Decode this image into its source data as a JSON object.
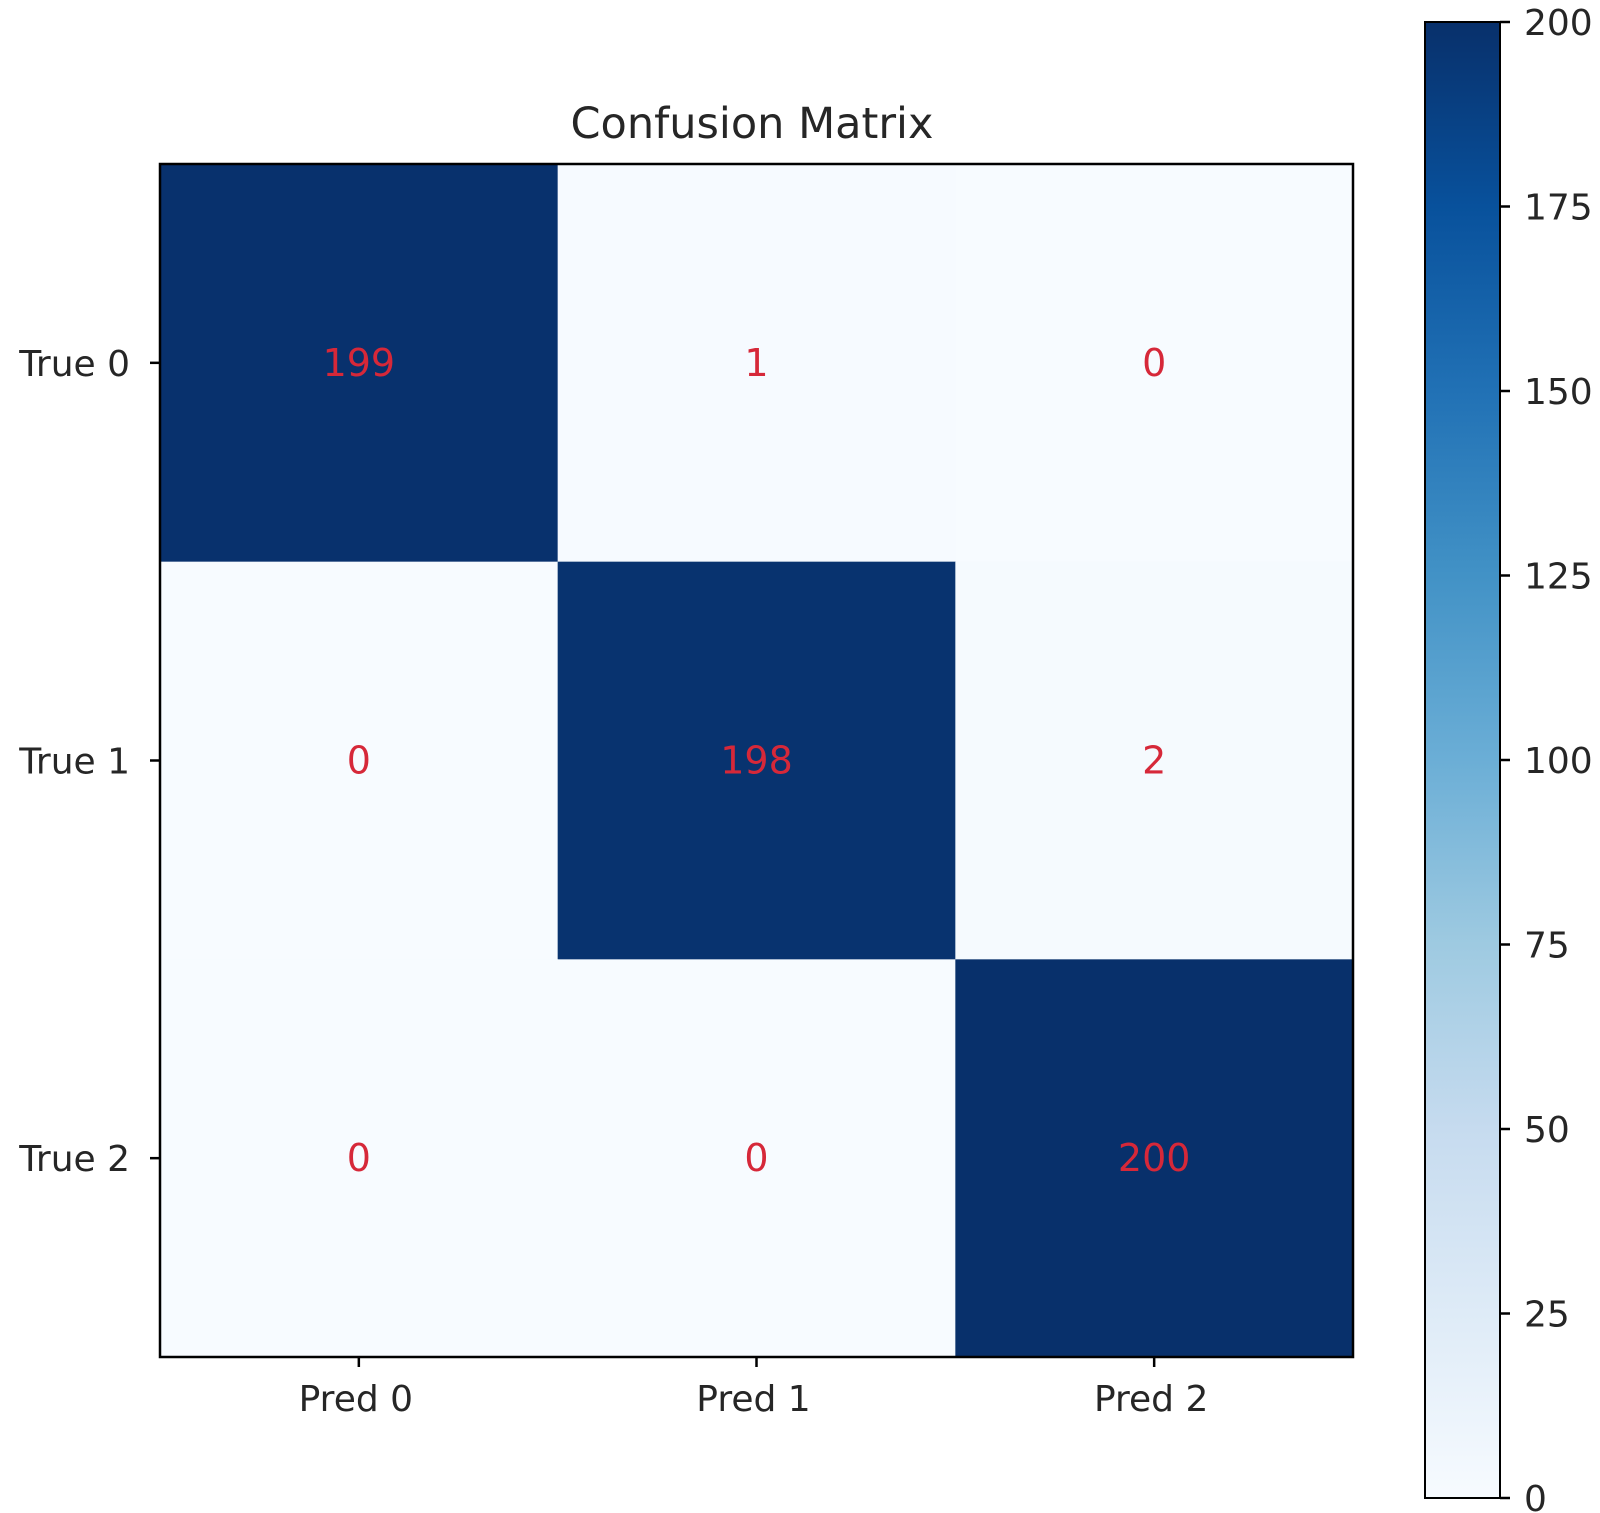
{
  "chart_data": {
    "type": "heatmap",
    "title": "Confusion Matrix",
    "row_labels": [
      "True 0",
      "True 1",
      "True 2"
    ],
    "col_labels": [
      "Pred 0",
      "Pred 1",
      "Pred 2"
    ],
    "values": [
      [
        199,
        1,
        0
      ],
      [
        0,
        198,
        2
      ],
      [
        0,
        0,
        200
      ]
    ],
    "colorbar": {
      "range": [
        0,
        200
      ],
      "ticks": [
        0,
        25,
        50,
        75,
        100,
        125,
        150,
        175,
        200
      ],
      "colormap": "Blues"
    },
    "annotation_color": "#d62839",
    "grid": false,
    "legend": "colorbar right"
  }
}
